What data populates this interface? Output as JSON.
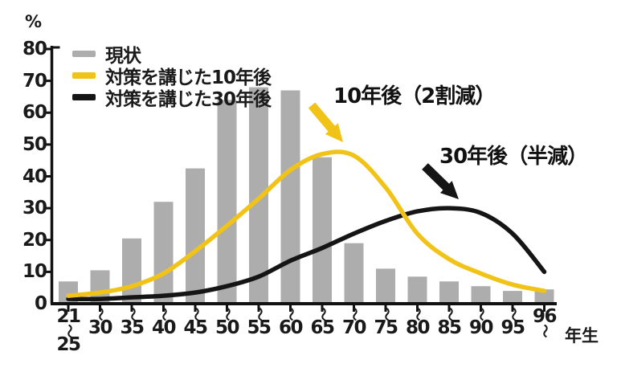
{
  "colors": {
    "bar": "#ADADAD",
    "line_10yr": "#F2C317",
    "line_30yr": "#151515",
    "axis": "#111111",
    "text": "#1A1A1A",
    "background": "#FFFFFF"
  },
  "legend": {
    "items": [
      {
        "label": "現状",
        "color": "#ADADAD"
      },
      {
        "label": "対策を講じた10年後",
        "color": "#F2C317"
      },
      {
        "label": "対策を講じた30年後",
        "color": "#151515"
      }
    ]
  },
  "annotations": [
    {
      "text": "10年後（2割減）",
      "arrow_color": "#F2C317"
    },
    {
      "text": "30年後（半減）",
      "arrow_color": "#151515"
    }
  ],
  "axis": {
    "y_unit": "%",
    "x_unit": "年生",
    "y_ticks": [
      80,
      70,
      60,
      50,
      40,
      30,
      20,
      10,
      0
    ]
  },
  "chart_data": {
    "type": "bar",
    "categories": [
      "21〜25",
      "〜30",
      "〜35",
      "〜40",
      "〜45",
      "〜50",
      "〜55",
      "〜60",
      "〜65",
      "〜70",
      "〜75",
      "〜80",
      "〜85",
      "〜90",
      "〜95",
      "96〜"
    ],
    "series": [
      {
        "name": "現状",
        "type": "bar",
        "values": [
          7,
          10.5,
          20.5,
          32,
          42.5,
          64,
          68,
          67,
          46,
          19,
          11,
          8.5,
          7,
          5.5,
          4,
          4.5
        ]
      },
      {
        "name": "対策を講じた10年後",
        "type": "line",
        "values": [
          2.5,
          3.5,
          5.5,
          9.5,
          16.5,
          24.5,
          33,
          42,
          47,
          46.5,
          36.5,
          22,
          14,
          9.5,
          6,
          4
        ]
      },
      {
        "name": "対策を講じた30年後",
        "type": "line",
        "values": [
          1.5,
          1.5,
          2,
          2.5,
          3.5,
          5.5,
          8.5,
          13.5,
          17.5,
          22,
          26,
          29,
          30,
          28.5,
          22,
          10
        ]
      }
    ],
    "xlabel": "年生",
    "ylabel": "%",
    "ylim": [
      0,
      80
    ],
    "grid": false,
    "legend_position": "top-left"
  }
}
